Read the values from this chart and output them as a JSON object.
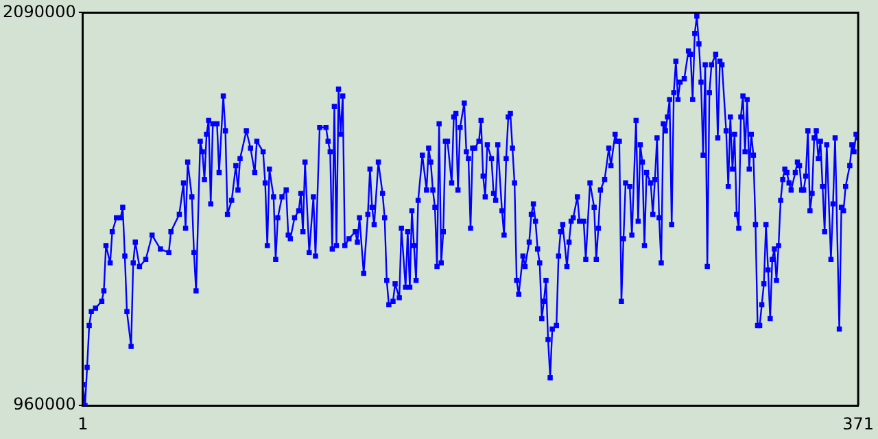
{
  "chart_data": {
    "type": "line",
    "marker": "square",
    "grid": false,
    "legend": false,
    "xlim": [
      1,
      371
    ],
    "xticks": [
      1,
      371
    ],
    "ylim": [
      960000,
      2090000
    ],
    "yticks": [
      960000,
      2090000
    ],
    "series": [
      {
        "color": "#0000ff",
        "x": [
          1,
          2,
          3,
          4,
          5,
          7,
          10,
          11,
          12,
          14,
          15,
          17,
          19,
          20,
          21,
          22,
          24,
          25,
          26,
          28,
          31,
          34,
          38,
          42,
          43,
          47,
          49,
          50,
          51,
          53,
          54,
          55,
          57,
          58,
          59,
          60,
          61,
          62,
          63,
          65,
          66,
          68,
          69,
          70,
          72,
          74,
          75,
          76,
          79,
          81,
          83,
          84,
          87,
          88,
          89,
          90,
          92,
          93,
          94,
          96,
          98,
          99,
          100,
          102,
          104,
          105,
          106,
          107,
          109,
          111,
          112,
          114,
          117,
          118,
          119,
          120,
          121,
          122,
          123,
          124,
          125,
          126,
          128,
          131,
          132,
          133,
          135,
          137,
          138,
          139,
          140,
          142,
          144,
          145,
          146,
          147,
          149,
          150,
          152,
          153,
          155,
          156,
          157,
          158,
          159,
          160,
          161,
          163,
          165,
          166,
          167,
          168,
          169,
          170,
          171,
          172,
          173,
          174,
          175,
          177,
          178,
          179,
          180,
          181,
          183,
          184,
          185,
          186,
          187,
          188,
          190,
          191,
          192,
          193,
          194,
          196,
          197,
          198,
          199,
          201,
          202,
          203,
          204,
          205,
          206,
          207,
          208,
          209,
          211,
          212,
          214,
          215,
          216,
          217,
          218,
          219,
          220,
          221,
          222,
          223,
          224,
          225,
          227,
          228,
          229,
          230,
          232,
          233,
          234,
          235,
          237,
          238,
          240,
          241,
          243,
          245,
          246,
          247,
          248,
          250,
          252,
          253,
          255,
          256,
          257,
          258,
          259,
          260,
          262,
          263,
          265,
          266,
          267,
          268,
          269,
          270,
          272,
          273,
          274,
          275,
          276,
          277,
          278,
          279,
          280,
          281,
          282,
          283,
          284,
          285,
          286,
          288,
          290,
          291,
          292,
          293,
          294,
          295,
          296,
          297,
          298,
          299,
          300,
          301,
          303,
          304,
          305,
          306,
          308,
          309,
          310,
          311,
          312,
          313,
          314,
          315,
          316,
          317,
          318,
          319,
          320,
          321,
          322,
          323,
          324,
          325,
          326,
          327,
          328,
          329,
          330,
          331,
          332,
          333,
          334,
          335,
          336,
          337,
          338,
          339,
          341,
          342,
          343,
          344,
          345,
          346,
          347,
          348,
          349,
          350,
          351,
          352,
          353,
          354,
          355,
          356,
          358,
          359,
          360,
          362,
          363,
          364,
          365,
          367,
          368,
          369,
          370,
          371
        ],
        "values": [
          1020000,
          960000,
          1070000,
          1190000,
          1230000,
          1240000,
          1260000,
          1290000,
          1420000,
          1370000,
          1460000,
          1500000,
          1500000,
          1530000,
          1390000,
          1230000,
          1130000,
          1370000,
          1430000,
          1360000,
          1380000,
          1450000,
          1410000,
          1400000,
          1460000,
          1510000,
          1600000,
          1470000,
          1660000,
          1560000,
          1400000,
          1290000,
          1720000,
          1690000,
          1610000,
          1740000,
          1780000,
          1540000,
          1770000,
          1770000,
          1630000,
          1850000,
          1750000,
          1510000,
          1550000,
          1650000,
          1580000,
          1670000,
          1750000,
          1700000,
          1630000,
          1720000,
          1690000,
          1600000,
          1420000,
          1640000,
          1560000,
          1380000,
          1500000,
          1560000,
          1580000,
          1450000,
          1440000,
          1500000,
          1520000,
          1570000,
          1460000,
          1660000,
          1400000,
          1560000,
          1390000,
          1760000,
          1760000,
          1720000,
          1690000,
          1410000,
          1820000,
          1420000,
          1870000,
          1740000,
          1850000,
          1420000,
          1440000,
          1460000,
          1430000,
          1500000,
          1340000,
          1510000,
          1640000,
          1530000,
          1480000,
          1660000,
          1570000,
          1500000,
          1320000,
          1250000,
          1260000,
          1310000,
          1270000,
          1470000,
          1300000,
          1460000,
          1300000,
          1520000,
          1420000,
          1320000,
          1550000,
          1680000,
          1580000,
          1700000,
          1660000,
          1580000,
          1530000,
          1360000,
          1770000,
          1370000,
          1460000,
          1720000,
          1720000,
          1600000,
          1790000,
          1800000,
          1580000,
          1760000,
          1830000,
          1690000,
          1670000,
          1470000,
          1700000,
          1700000,
          1720000,
          1780000,
          1620000,
          1560000,
          1710000,
          1670000,
          1570000,
          1550000,
          1710000,
          1520000,
          1450000,
          1670000,
          1790000,
          1800000,
          1700000,
          1600000,
          1320000,
          1280000,
          1390000,
          1360000,
          1430000,
          1510000,
          1540000,
          1490000,
          1410000,
          1370000,
          1210000,
          1260000,
          1320000,
          1150000,
          1040000,
          1180000,
          1190000,
          1390000,
          1460000,
          1480000,
          1360000,
          1430000,
          1490000,
          1500000,
          1560000,
          1490000,
          1490000,
          1380000,
          1600000,
          1530000,
          1380000,
          1470000,
          1580000,
          1610000,
          1700000,
          1650000,
          1740000,
          1720000,
          1720000,
          1260000,
          1440000,
          1600000,
          1590000,
          1450000,
          1780000,
          1490000,
          1710000,
          1660000,
          1420000,
          1630000,
          1600000,
          1510000,
          1610000,
          1730000,
          1500000,
          1370000,
          1770000,
          1750000,
          1790000,
          1840000,
          1480000,
          1860000,
          1950000,
          1840000,
          1890000,
          1900000,
          1980000,
          1970000,
          1840000,
          2030000,
          2080000,
          2000000,
          1890000,
          1680000,
          1940000,
          1360000,
          1860000,
          1940000,
          1970000,
          1730000,
          1950000,
          1940000,
          1750000,
          1590000,
          1790000,
          1640000,
          1740000,
          1510000,
          1470000,
          1790000,
          1850000,
          1690000,
          1840000,
          1640000,
          1740000,
          1680000,
          1480000,
          1190000,
          1190000,
          1250000,
          1310000,
          1480000,
          1350000,
          1210000,
          1380000,
          1410000,
          1320000,
          1420000,
          1550000,
          1610000,
          1640000,
          1630000,
          1600000,
          1580000,
          1630000,
          1660000,
          1650000,
          1580000,
          1580000,
          1620000,
          1750000,
          1520000,
          1570000,
          1730000,
          1750000,
          1670000,
          1720000,
          1590000,
          1460000,
          1710000,
          1380000,
          1540000,
          1730000,
          1180000,
          1530000,
          1520000,
          1590000,
          1650000,
          1710000,
          1690000,
          1740000,
          1730000
        ]
      }
    ]
  }
}
